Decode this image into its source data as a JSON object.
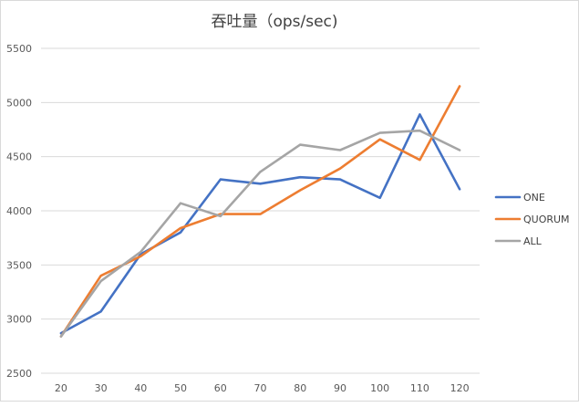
{
  "chart_data": {
    "type": "line",
    "title": "吞吐量（ops/sec)",
    "xlabel": "",
    "ylabel": "",
    "x": [
      20,
      30,
      40,
      50,
      60,
      70,
      80,
      90,
      100,
      110,
      120
    ],
    "ylim": [
      2500,
      5500
    ],
    "yticks": [
      2500,
      3000,
      3500,
      4000,
      4500,
      5000,
      5500
    ],
    "grid": true,
    "legend_position": "right",
    "series": [
      {
        "name": "ONE",
        "color": "#4472C4",
        "values": [
          2870,
          3070,
          3600,
          3800,
          4290,
          4250,
          4310,
          4290,
          4120,
          4890,
          4200
        ]
      },
      {
        "name": "QUORUM",
        "color": "#ED7D31",
        "values": [
          2840,
          3400,
          3580,
          3840,
          3970,
          3970,
          4190,
          4390,
          4660,
          4470,
          5150
        ]
      },
      {
        "name": "ALL",
        "color": "#A5A5A5",
        "values": [
          2840,
          3350,
          3620,
          4070,
          3950,
          4360,
          4610,
          4560,
          4720,
          4740,
          4560
        ]
      }
    ]
  }
}
